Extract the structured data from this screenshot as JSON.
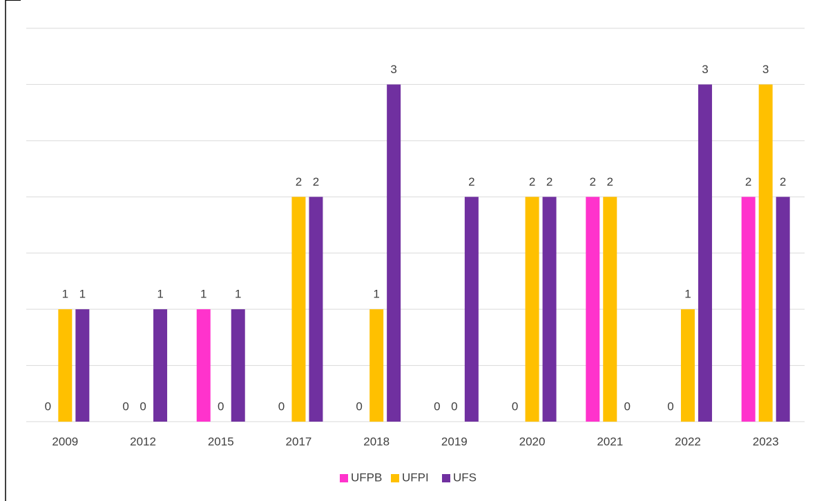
{
  "chart_data": {
    "type": "bar",
    "categories": [
      "2009",
      "2012",
      "2015",
      "2017",
      "2018",
      "2019",
      "2020",
      "2021",
      "2022",
      "2023"
    ],
    "series": [
      {
        "name": "UFPB",
        "color": "#ff33cc",
        "values": [
          0,
          0,
          1,
          0,
          0,
          0,
          0,
          2,
          0,
          2
        ]
      },
      {
        "name": "UFPI",
        "color": "#ffc000",
        "values": [
          1,
          0,
          0,
          2,
          1,
          0,
          2,
          2,
          1,
          3
        ]
      },
      {
        "name": "UFS",
        "color": "#7030a0",
        "values": [
          1,
          1,
          1,
          2,
          3,
          2,
          2,
          0,
          3,
          2
        ]
      }
    ],
    "ylim": [
      0,
      3.5
    ],
    "yticks": [
      0,
      0.5,
      1,
      1.5,
      2,
      2.5,
      3,
      3.5
    ],
    "grid": true,
    "legend": "bottom"
  }
}
